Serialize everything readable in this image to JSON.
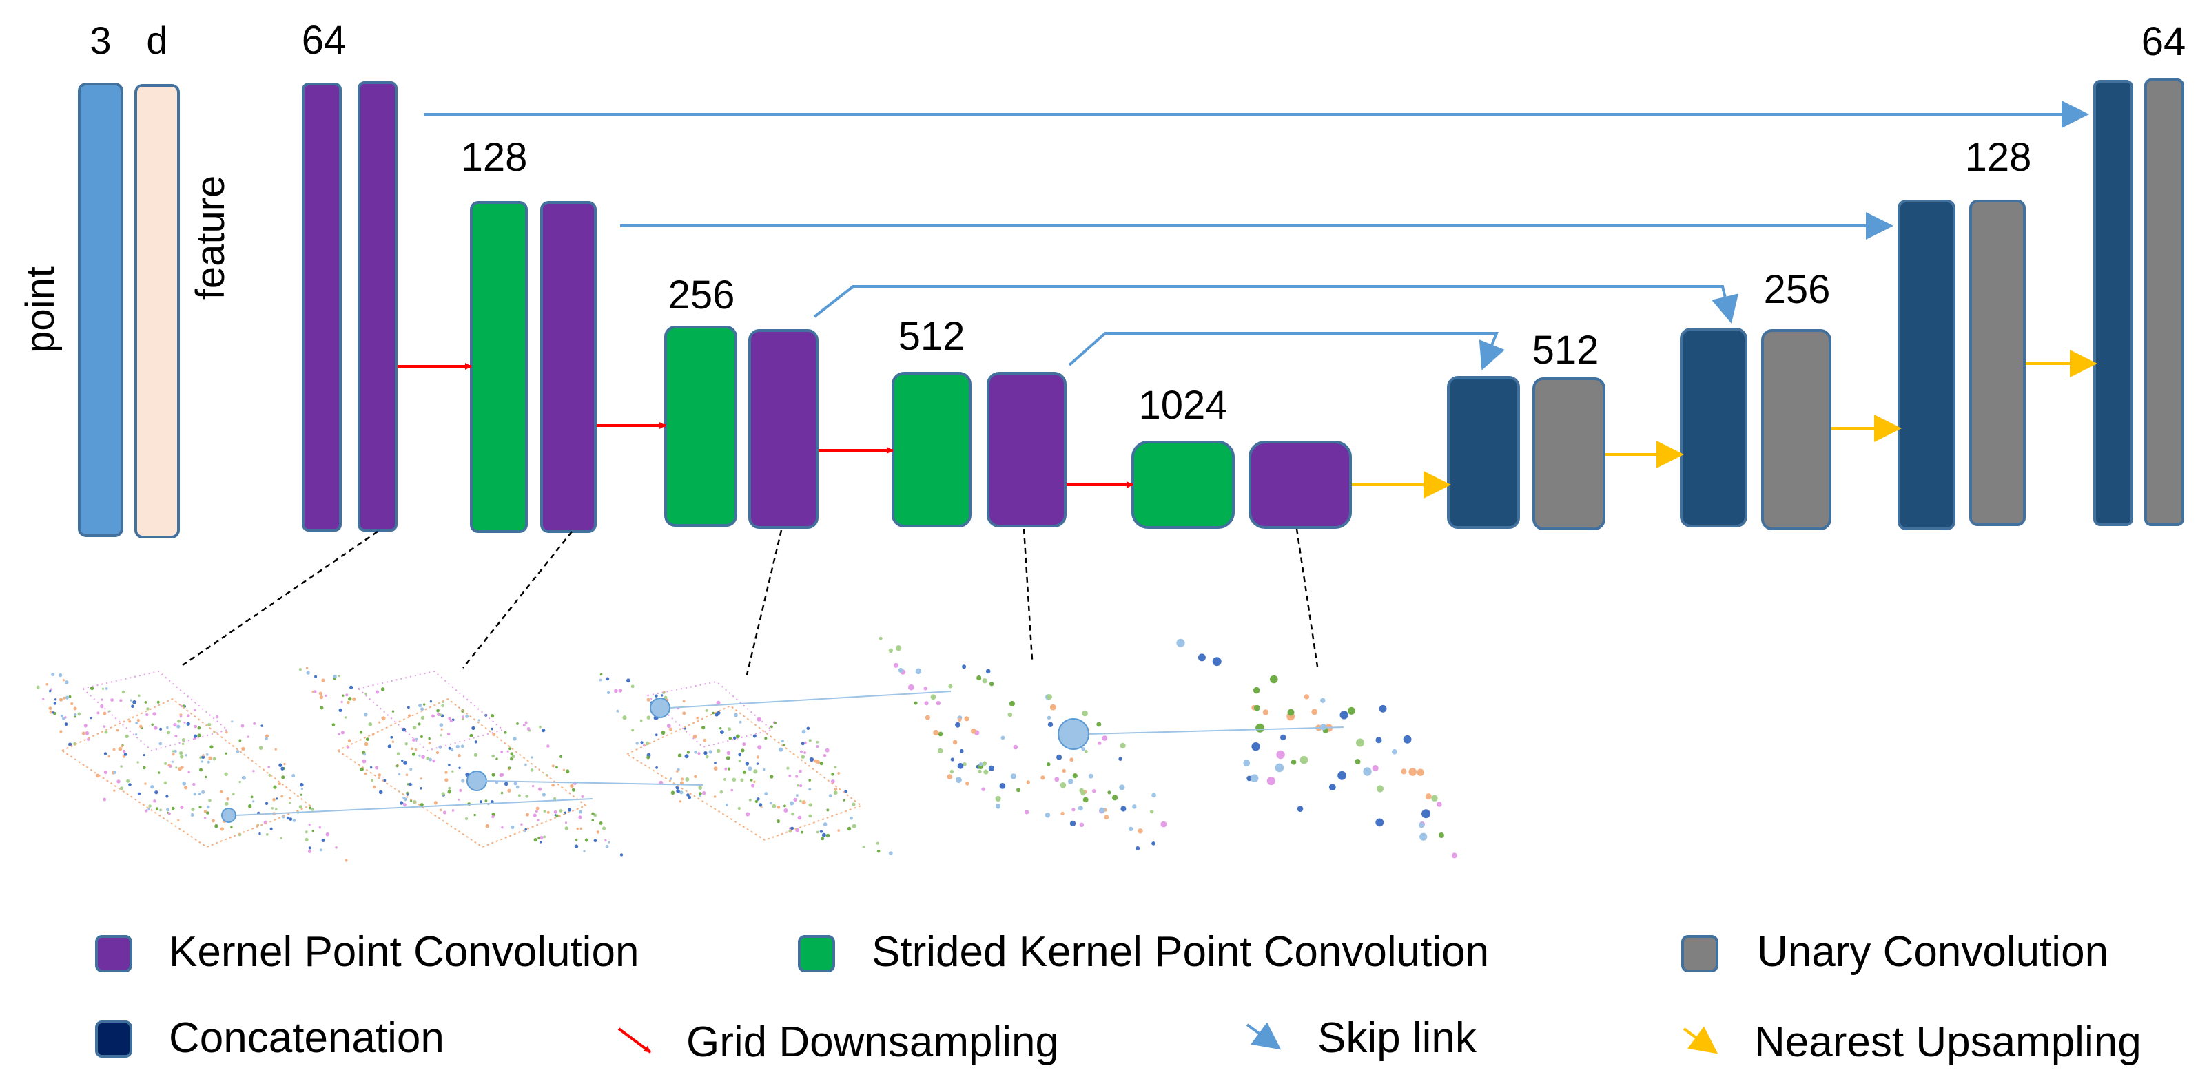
{
  "colors": {
    "point": "#5b9bd5",
    "feature": "#fbe5d6",
    "kpconv": "#7030a0",
    "strided": "#00b050",
    "unary": "#808080",
    "concat": "#1f4e79",
    "downsample": "#ff0000",
    "skip": "#5b9bd5",
    "upsample": "#ffc000",
    "border": "#41719c"
  },
  "input": {
    "point_dim": "3",
    "feature_dim": "d",
    "point_label": "point",
    "feature_label": "feature"
  },
  "encoder_labels": [
    "64",
    "128",
    "256",
    "512",
    "1024"
  ],
  "decoder_labels": [
    "512",
    "256",
    "128",
    "64"
  ],
  "legend": [
    {
      "label": "Kernel Point Convolution",
      "kind": "swatch",
      "color": "kpconv"
    },
    {
      "label": "Strided Kernel Point Convolution",
      "kind": "swatch",
      "color": "strided"
    },
    {
      "label": "Unary Convolution",
      "kind": "swatch",
      "color": "unary"
    },
    {
      "label": "Concatenation",
      "kind": "swatch",
      "color": "concat"
    },
    {
      "label": "Grid Downsampling",
      "kind": "arrow",
      "color": "downsample"
    },
    {
      "label": "Skip link",
      "kind": "arrow",
      "color": "skip"
    },
    {
      "label": "Nearest Upsampling",
      "kind": "arrow",
      "color": "upsample"
    }
  ]
}
